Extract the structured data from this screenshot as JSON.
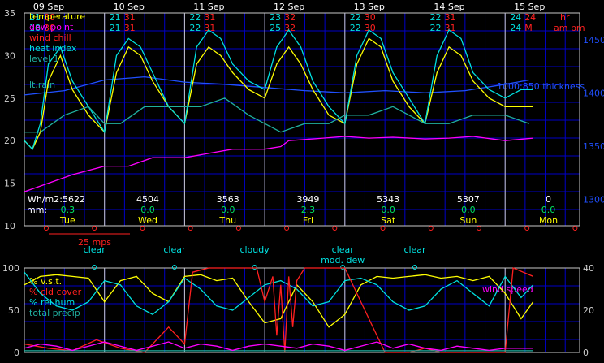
{
  "chart_data": [
    {
      "type": "line",
      "panel": "upper",
      "x_unit": "day",
      "x_range": [
        0,
        6.7
      ],
      "ylim": [
        10,
        35
      ],
      "y_ticks": [
        10,
        15,
        20,
        25,
        30,
        35
      ],
      "y2lim": [
        1275,
        1475
      ],
      "y2_ticks": [
        1300,
        1350,
        1400,
        1450
      ],
      "grid": true,
      "legend": [
        "temperature",
        "dew point",
        "wind chill",
        "heat index",
        "level 1"
      ],
      "legend_colors": [
        "#ffff00",
        "#ff00ff",
        "#ff2020",
        "#00e0e0",
        "#20b0a0"
      ],
      "extra_labels": [
        {
          "text": "lt.rain",
          "color": "#20b0a0"
        },
        {
          "text": "1000:850 thickness",
          "color": "#2050ff"
        }
      ],
      "days": [
        {
          "date": "09 Sep",
          "dow": "Tue",
          "wh": "Wh/m2:5622",
          "mm": "0.3",
          "mm_label": "mm:",
          "top_left": "21",
          "top_right": "30",
          "bot_left": "18",
          "bot_right": "30"
        },
        {
          "date": "10 Sep",
          "dow": "Wed",
          "wh": "4504",
          "mm": "0.0",
          "top_left": "21",
          "top_right": "31",
          "bot_left": "21",
          "bot_right": "31"
        },
        {
          "date": "11 Sep",
          "dow": "Thu",
          "wh": "3563",
          "mm": "0.0",
          "top_left": "22",
          "top_right": "31",
          "bot_left": "22",
          "bot_right": "31"
        },
        {
          "date": "12 Sep",
          "dow": "Fri",
          "wh": "3949",
          "mm": "2.3",
          "top_left": "23",
          "top_right": "32",
          "bot_left": "25",
          "bot_right": "32"
        },
        {
          "date": "13 Sep",
          "dow": "Sat",
          "wh": "5343",
          "mm": "0.0",
          "top_left": "22",
          "top_right": "30",
          "bot_left": "22",
          "bot_right": "30"
        },
        {
          "date": "14 Sep",
          "dow": "Sun",
          "wh": "5307",
          "mm": "0.0",
          "top_left": "22",
          "top_right": "31",
          "bot_left": "22",
          "bot_right": "31"
        },
        {
          "date": "15 Sep",
          "dow": "Mon",
          "wh": "0",
          "mm": "0.0",
          "top_left": "24",
          "top_right": "24",
          "bot_left": "24",
          "bot_right": "M"
        }
      ],
      "time_labels": {
        "hr": "hr",
        "ampm": "am pm"
      },
      "wind_scale_label": "25 mps",
      "series": [
        {
          "name": "temperature",
          "color": "#ffff00",
          "x": [
            0,
            0.1,
            0.2,
            0.3,
            0.45,
            0.6,
            0.8,
            1.0,
            1.15,
            1.3,
            1.45,
            1.6,
            1.8,
            2.0,
            2.15,
            2.3,
            2.45,
            2.6,
            2.8,
            3.0,
            3.15,
            3.3,
            3.45,
            3.6,
            3.8,
            4.0,
            4.15,
            4.3,
            4.45,
            4.6,
            4.8,
            5.0,
            5.15,
            5.3,
            5.45,
            5.6,
            5.8,
            6.0,
            6.2,
            6.35
          ],
          "y": [
            20,
            19,
            21,
            27,
            30,
            26,
            23,
            21,
            28,
            31,
            30,
            27,
            24,
            22,
            29,
            31,
            30,
            28,
            26,
            25,
            29,
            31,
            29,
            26,
            23,
            22,
            29,
            32,
            31,
            27,
            24,
            22,
            28,
            31,
            30,
            27,
            25,
            24,
            24,
            24
          ]
        },
        {
          "name": "heat index",
          "color": "#00e0e0",
          "x": [
            0,
            0.1,
            0.2,
            0.3,
            0.45,
            0.6,
            0.8,
            1.0,
            1.15,
            1.3,
            1.45,
            1.6,
            1.8,
            2.0,
            2.15,
            2.3,
            2.45,
            2.6,
            2.8,
            3.0,
            3.15,
            3.3,
            3.45,
            3.6,
            3.8,
            4.0,
            4.15,
            4.3,
            4.45,
            4.6,
            4.8,
            5.0,
            5.15,
            5.3,
            5.45,
            5.6,
            5.8,
            6.0,
            6.2,
            6.35
          ],
          "y": [
            20,
            19,
            22,
            29,
            31,
            27,
            24,
            21,
            30,
            32,
            31,
            28,
            24,
            22,
            31,
            33,
            32,
            29,
            27,
            26,
            31,
            33,
            31,
            27,
            24,
            22,
            30,
            33,
            32,
            28,
            25,
            22,
            30,
            33,
            32,
            28,
            26,
            25,
            26,
            26
          ]
        },
        {
          "name": "dew point",
          "color": "#ff00ff",
          "x": [
            0,
            0.3,
            0.6,
            1.0,
            1.3,
            1.6,
            2.0,
            2.3,
            2.6,
            3.0,
            3.2,
            3.3,
            3.6,
            4.0,
            4.3,
            4.6,
            5.0,
            5.3,
            5.6,
            6.0,
            6.35
          ],
          "y": [
            14,
            15,
            16,
            17,
            17,
            18,
            18,
            18.5,
            19,
            19,
            19.3,
            20,
            20.2,
            20.5,
            20.3,
            20.4,
            20.2,
            20.3,
            20.5,
            20,
            20.3
          ]
        },
        {
          "name": "level 1",
          "color": "#20b0a0",
          "x": [
            0,
            0.2,
            0.5,
            0.8,
            1.0,
            1.2,
            1.5,
            1.8,
            2.0,
            2.2,
            2.5,
            2.8,
            3.0,
            3.2,
            3.5,
            3.8,
            4.0,
            4.3,
            4.6,
            5.0,
            5.3,
            5.6,
            6.0,
            6.3
          ],
          "y": [
            21,
            21,
            23,
            24,
            22,
            22,
            24,
            24,
            24,
            24,
            25,
            23,
            22,
            21,
            22,
            22,
            23,
            23,
            24,
            22,
            22,
            23,
            23,
            22
          ]
        }
      ],
      "thickness": {
        "name": "1000:850 thickness",
        "color": "#2050ff",
        "x": [
          0,
          0.5,
          1.0,
          1.5,
          2.0,
          2.5,
          3.0,
          3.5,
          4.0,
          4.5,
          5.0,
          5.5,
          6.0,
          6.3
        ],
        "y": [
          1398,
          1402,
          1412,
          1415,
          1410,
          1408,
          1405,
          1402,
          1400,
          1402,
          1400,
          1402,
          1408,
          1412
        ]
      }
    },
    {
      "type": "line",
      "panel": "lower",
      "x_range": [
        0,
        6.7
      ],
      "ylim": [
        0,
        100
      ],
      "y_ticks": [
        0,
        50,
        100
      ],
      "y2lim": [
        0,
        40
      ],
      "y2_ticks": [
        0,
        20,
        40
      ],
      "grid": true,
      "legend": [
        "% v.s.t.",
        "% cld cover",
        "% rel hum",
        "total precip"
      ],
      "legend_colors": [
        "#ffff00",
        "#ff2020",
        "#00e0e0",
        "#20b0a0"
      ],
      "right_label": {
        "text": "wind speed",
        "color": "#ff00ff"
      },
      "sky": [
        {
          "x": 0.6,
          "label": "clear"
        },
        {
          "x": 1.6,
          "label": "clear"
        },
        {
          "x": 2.6,
          "label": "cloudy"
        },
        {
          "x": 3.7,
          "label": "clear",
          "sub": "mod. dew"
        },
        {
          "x": 4.6,
          "label": "clear"
        }
      ],
      "series": [
        {
          "name": "% v.s.t.",
          "color": "#ffff00",
          "x": [
            0,
            0.2,
            0.4,
            0.6,
            0.8,
            1.0,
            1.2,
            1.4,
            1.6,
            1.8,
            2.0,
            2.2,
            2.4,
            2.6,
            2.8,
            3.0,
            3.2,
            3.4,
            3.6,
            3.8,
            4.0,
            4.2,
            4.4,
            4.6,
            4.8,
            5.0,
            5.2,
            5.4,
            5.6,
            5.8,
            6.0,
            6.2,
            6.35
          ],
          "y": [
            80,
            90,
            92,
            90,
            88,
            60,
            85,
            90,
            70,
            60,
            90,
            92,
            85,
            88,
            60,
            35,
            40,
            80,
            60,
            30,
            45,
            80,
            90,
            88,
            90,
            92,
            88,
            90,
            85,
            90,
            70,
            40,
            60
          ]
        },
        {
          "name": "% rel hum",
          "color": "#00e0e0",
          "x": [
            0,
            0.2,
            0.4,
            0.6,
            0.8,
            1.0,
            1.2,
            1.4,
            1.6,
            1.8,
            2.0,
            2.2,
            2.4,
            2.6,
            2.8,
            3.0,
            3.2,
            3.4,
            3.6,
            3.8,
            4.0,
            4.2,
            4.4,
            4.6,
            4.8,
            5.0,
            5.2,
            5.4,
            5.6,
            5.8,
            6.0,
            6.2,
            6.35
          ],
          "y": [
            95,
            70,
            55,
            50,
            60,
            85,
            80,
            55,
            45,
            60,
            88,
            75,
            55,
            50,
            65,
            80,
            85,
            75,
            55,
            60,
            85,
            88,
            80,
            60,
            50,
            55,
            75,
            85,
            70,
            55,
            90,
            65,
            80
          ]
        },
        {
          "name": "% cld cover",
          "color": "#ff2020",
          "x": [
            0,
            0.3,
            0.6,
            0.9,
            1.2,
            1.5,
            1.8,
            2.0,
            2.1,
            2.3,
            2.6,
            2.9,
            3.0,
            3.1,
            3.15,
            3.2,
            3.25,
            3.3,
            3.35,
            3.4,
            3.5,
            3.6,
            3.8,
            4.0,
            4.2,
            4.5,
            4.8,
            5.0,
            5.2,
            5.4,
            5.6,
            5.8,
            6.0,
            6.1,
            6.35
          ],
          "y": [
            10,
            5,
            2,
            15,
            5,
            0,
            30,
            10,
            95,
            100,
            100,
            100,
            60,
            90,
            20,
            80,
            0,
            90,
            30,
            85,
            100,
            100,
            100,
            100,
            60,
            0,
            0,
            5,
            0,
            0,
            0,
            0,
            0,
            100,
            90
          ]
        },
        {
          "name": "total precip",
          "color": "#20b0a0",
          "x": [
            0,
            6.35
          ],
          "y": [
            2,
            2
          ]
        }
      ],
      "wind_speed": {
        "name": "wind speed",
        "color": "#ff00ff",
        "x": [
          0,
          0.2,
          0.4,
          0.6,
          0.8,
          1.0,
          1.2,
          1.4,
          1.6,
          1.8,
          2.0,
          2.2,
          2.4,
          2.6,
          2.8,
          3.0,
          3.2,
          3.4,
          3.6,
          3.8,
          4.0,
          4.2,
          4.4,
          4.6,
          4.8,
          5.0,
          5.2,
          5.4,
          5.6,
          5.8,
          6.0,
          6.35
        ],
        "y": [
          2,
          4,
          3,
          1,
          3,
          5,
          3,
          1,
          3,
          5,
          2,
          4,
          3,
          1,
          3,
          4,
          3,
          2,
          4,
          3,
          1,
          3,
          5,
          2,
          4,
          2,
          1,
          3,
          2,
          1,
          2,
          2
        ]
      }
    }
  ]
}
